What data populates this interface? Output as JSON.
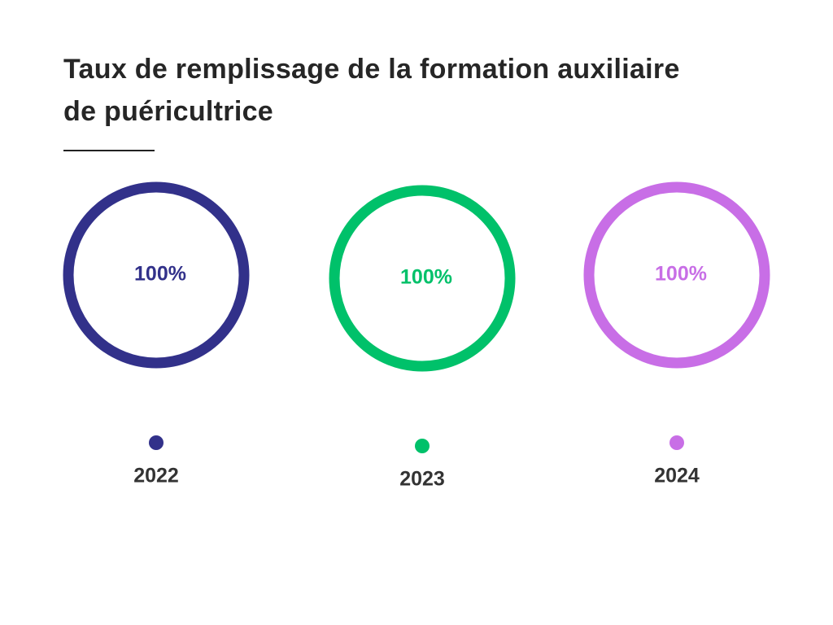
{
  "chart_data": {
    "type": "ring",
    "title": [
      "Taux de remplissage de la formation auxiliaire",
      "de puéricultrice"
    ],
    "categories": [
      "2022",
      "2023",
      "2024"
    ],
    "values": [
      100,
      100,
      100
    ],
    "value_labels": [
      "100%",
      "100%",
      "100%"
    ],
    "colors": [
      "#32318a",
      "#00c16a",
      "#c86ee6"
    ],
    "ylim": [
      0,
      100
    ]
  }
}
